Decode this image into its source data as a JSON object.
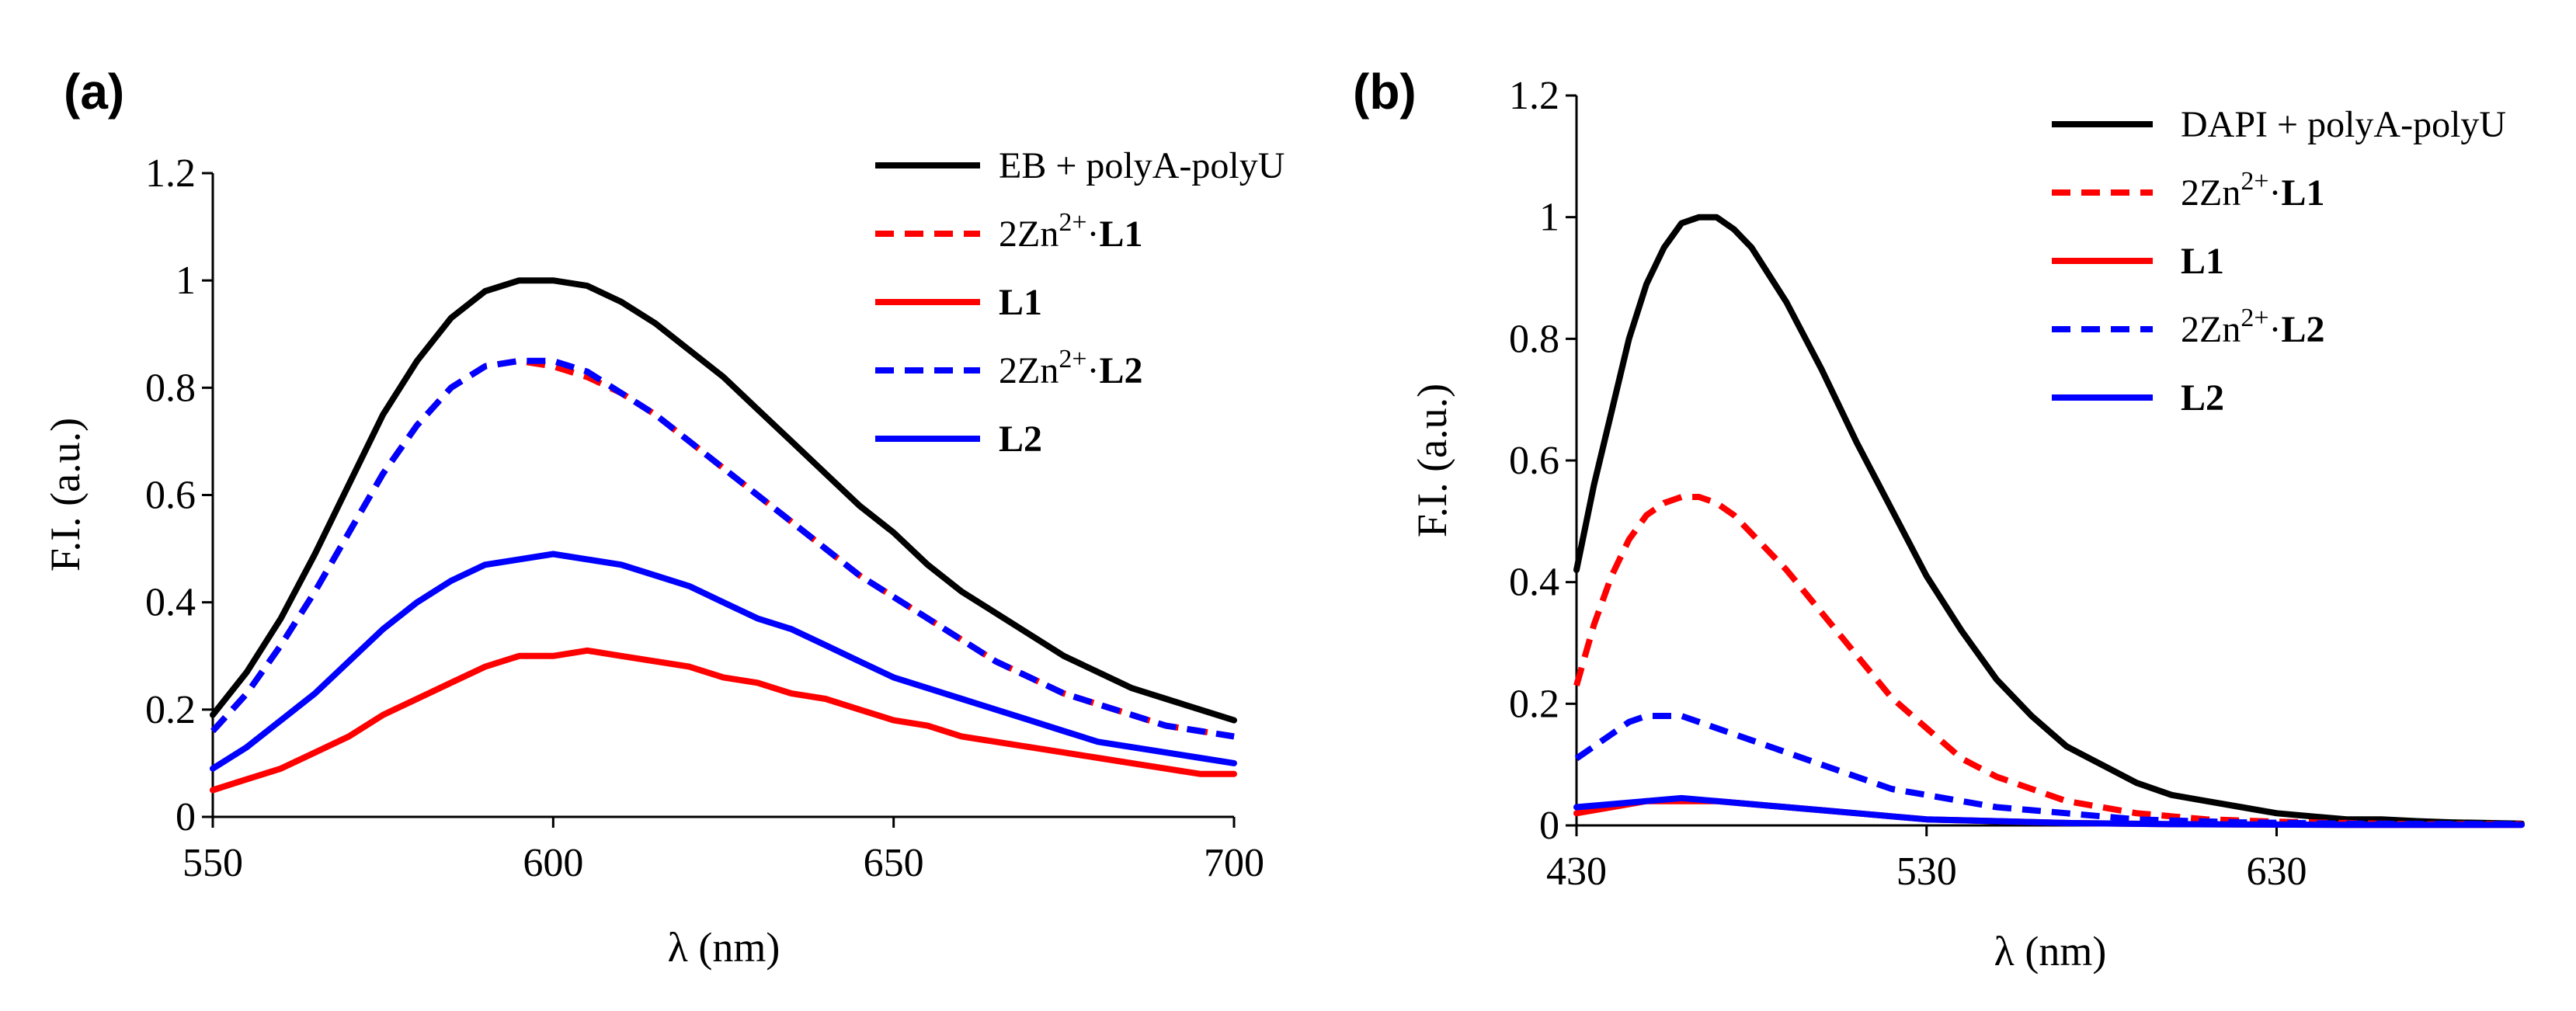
{
  "chart_data": [
    {
      "type": "line",
      "panel_label": "(a)",
      "xlabel": "λ (nm)",
      "ylabel": "F.I. (a.u.)",
      "xlim": [
        550,
        700
      ],
      "ylim": [
        0,
        1.2
      ],
      "x_ticks": [
        "550",
        "600",
        "650",
        "700"
      ],
      "y_ticks": [
        "0",
        "0.2",
        "0.4",
        "0.6",
        "0.8",
        "1",
        "1.2"
      ],
      "grid": false,
      "legend_position": "top-right",
      "series": [
        {
          "name": "EB + polyA-polyU",
          "color": "#000000",
          "dash": "solid",
          "legend": {
            "prefix": "EB + polyA-polyU",
            "sup": "",
            "suffix": "",
            "bold": ""
          },
          "x": [
            550,
            555,
            560,
            565,
            570,
            575,
            580,
            585,
            590,
            595,
            600,
            605,
            610,
            615,
            620,
            625,
            630,
            635,
            640,
            645,
            650,
            655,
            660,
            665,
            670,
            675,
            680,
            685,
            690,
            695,
            700
          ],
          "y": [
            0.19,
            0.27,
            0.37,
            0.49,
            0.62,
            0.75,
            0.85,
            0.93,
            0.98,
            1.0,
            1.0,
            0.99,
            0.96,
            0.92,
            0.87,
            0.82,
            0.76,
            0.7,
            0.64,
            0.58,
            0.53,
            0.47,
            0.42,
            0.38,
            0.34,
            0.3,
            0.27,
            0.24,
            0.22,
            0.2,
            0.18
          ]
        },
        {
          "name": "2Zn2+·L1",
          "color": "#ff0000",
          "dash": "dashed",
          "legend": {
            "prefix": "2Zn",
            "sup": "2+",
            "suffix": "·",
            "bold": "L1"
          },
          "x": [
            550,
            555,
            560,
            565,
            570,
            575,
            580,
            585,
            590,
            595,
            600,
            605,
            610,
            615,
            620,
            625,
            630,
            635,
            640,
            645,
            650,
            655,
            660,
            665,
            670,
            675,
            680,
            685,
            690,
            695,
            700
          ],
          "y": [
            0.16,
            0.23,
            0.32,
            0.42,
            0.53,
            0.64,
            0.73,
            0.8,
            0.84,
            0.85,
            0.84,
            0.82,
            0.79,
            0.75,
            0.7,
            0.65,
            0.6,
            0.55,
            0.5,
            0.45,
            0.41,
            0.37,
            0.33,
            0.29,
            0.26,
            0.23,
            0.21,
            0.19,
            0.17,
            0.16,
            0.15
          ]
        },
        {
          "name": "L1",
          "color": "#ff0000",
          "dash": "solid",
          "legend": {
            "prefix": "",
            "sup": "",
            "suffix": "",
            "bold": "L1"
          },
          "x": [
            550,
            555,
            560,
            565,
            570,
            575,
            580,
            585,
            590,
            595,
            600,
            605,
            610,
            615,
            620,
            625,
            630,
            635,
            640,
            645,
            650,
            655,
            660,
            665,
            670,
            675,
            680,
            685,
            690,
            695,
            700
          ],
          "y": [
            0.05,
            0.07,
            0.09,
            0.12,
            0.15,
            0.19,
            0.22,
            0.25,
            0.28,
            0.3,
            0.3,
            0.31,
            0.3,
            0.29,
            0.28,
            0.26,
            0.25,
            0.23,
            0.22,
            0.2,
            0.18,
            0.17,
            0.15,
            0.14,
            0.13,
            0.12,
            0.11,
            0.1,
            0.09,
            0.08,
            0.08
          ]
        },
        {
          "name": "2Zn2+·L2",
          "color": "#0000ff",
          "dash": "dashed",
          "legend": {
            "prefix": "2Zn",
            "sup": "2+",
            "suffix": "·",
            "bold": "L2"
          },
          "x": [
            550,
            555,
            560,
            565,
            570,
            575,
            580,
            585,
            590,
            595,
            600,
            605,
            610,
            615,
            620,
            625,
            630,
            635,
            640,
            645,
            650,
            655,
            660,
            665,
            670,
            675,
            680,
            685,
            690,
            695,
            700
          ],
          "y": [
            0.16,
            0.23,
            0.32,
            0.42,
            0.53,
            0.64,
            0.73,
            0.8,
            0.84,
            0.85,
            0.85,
            0.83,
            0.79,
            0.75,
            0.7,
            0.65,
            0.6,
            0.55,
            0.5,
            0.45,
            0.41,
            0.37,
            0.33,
            0.29,
            0.26,
            0.23,
            0.21,
            0.19,
            0.17,
            0.16,
            0.15
          ]
        },
        {
          "name": "L2",
          "color": "#0000ff",
          "dash": "solid",
          "legend": {
            "prefix": "",
            "sup": "",
            "suffix": "",
            "bold": "L2"
          },
          "x": [
            550,
            555,
            560,
            565,
            570,
            575,
            580,
            585,
            590,
            595,
            600,
            605,
            610,
            615,
            620,
            625,
            630,
            635,
            640,
            645,
            650,
            655,
            660,
            665,
            670,
            675,
            680,
            685,
            690,
            695,
            700
          ],
          "y": [
            0.09,
            0.13,
            0.18,
            0.23,
            0.29,
            0.35,
            0.4,
            0.44,
            0.47,
            0.48,
            0.49,
            0.48,
            0.47,
            0.45,
            0.43,
            0.4,
            0.37,
            0.35,
            0.32,
            0.29,
            0.26,
            0.24,
            0.22,
            0.2,
            0.18,
            0.16,
            0.14,
            0.13,
            0.12,
            0.11,
            0.1
          ]
        }
      ]
    },
    {
      "type": "line",
      "panel_label": "(b)",
      "xlabel": "λ (nm)",
      "ylabel": "F.I. (a.u.)",
      "xlim": [
        430,
        700
      ],
      "ylim": [
        0,
        1.2
      ],
      "x_ticks": [
        "430",
        "530",
        "630"
      ],
      "x_tick_values": [
        430,
        530,
        630
      ],
      "y_ticks": [
        "0",
        "0.2",
        "0.4",
        "0.6",
        "0.8",
        "1",
        "1.2"
      ],
      "grid": false,
      "legend_position": "top-right",
      "series": [
        {
          "name": "DAPI + polyA-polyU",
          "color": "#000000",
          "dash": "solid",
          "legend": {
            "prefix": "DAPI + polyA-polyU",
            "sup": "",
            "suffix": "",
            "bold": ""
          },
          "x": [
            430,
            435,
            440,
            445,
            450,
            455,
            460,
            465,
            470,
            475,
            480,
            490,
            500,
            510,
            520,
            530,
            540,
            550,
            560,
            570,
            580,
            590,
            600,
            610,
            620,
            630,
            640,
            650,
            660,
            670,
            680,
            690,
            700
          ],
          "y": [
            0.42,
            0.56,
            0.68,
            0.8,
            0.89,
            0.95,
            0.99,
            1.0,
            1.0,
            0.98,
            0.95,
            0.86,
            0.75,
            0.63,
            0.52,
            0.41,
            0.32,
            0.24,
            0.18,
            0.13,
            0.1,
            0.07,
            0.05,
            0.04,
            0.03,
            0.02,
            0.015,
            0.01,
            0.01,
            0.007,
            0.005,
            0.004,
            0.003
          ]
        },
        {
          "name": "2Zn2+·L1",
          "color": "#ff0000",
          "dash": "dashed",
          "legend": {
            "prefix": "2Zn",
            "sup": "2+",
            "suffix": "·",
            "bold": "L1"
          },
          "x": [
            430,
            435,
            440,
            445,
            450,
            455,
            460,
            465,
            470,
            475,
            480,
            490,
            500,
            510,
            520,
            530,
            540,
            550,
            560,
            570,
            580,
            590,
            600,
            610,
            620,
            630,
            640,
            650,
            660,
            670,
            680,
            690,
            700
          ],
          "y": [
            0.23,
            0.33,
            0.41,
            0.47,
            0.51,
            0.53,
            0.54,
            0.54,
            0.53,
            0.51,
            0.48,
            0.42,
            0.35,
            0.28,
            0.21,
            0.16,
            0.11,
            0.08,
            0.06,
            0.04,
            0.03,
            0.02,
            0.015,
            0.01,
            0.008,
            0.006,
            0.005,
            0.004,
            0.003,
            0.002,
            0.002,
            0.002,
            0.002
          ]
        },
        {
          "name": "L1",
          "color": "#ff0000",
          "dash": "solid",
          "legend": {
            "prefix": "",
            "sup": "",
            "suffix": "",
            "bold": "L1"
          },
          "x": [
            430,
            440,
            450,
            460,
            470,
            480,
            490,
            500,
            510,
            520,
            530,
            550,
            570,
            600,
            650,
            700
          ],
          "y": [
            0.02,
            0.03,
            0.04,
            0.04,
            0.04,
            0.035,
            0.03,
            0.025,
            0.02,
            0.015,
            0.01,
            0.007,
            0.004,
            0.002,
            0.001,
            0.001
          ]
        },
        {
          "name": "2Zn2+·L2",
          "color": "#0000ff",
          "dash": "dashed",
          "legend": {
            "prefix": "2Zn",
            "sup": "2+",
            "suffix": "·",
            "bold": "L2"
          },
          "x": [
            430,
            435,
            440,
            445,
            450,
            455,
            460,
            465,
            470,
            475,
            480,
            490,
            500,
            510,
            520,
            530,
            540,
            550,
            560,
            570,
            580,
            590,
            600,
            620,
            650,
            700
          ],
          "y": [
            0.11,
            0.13,
            0.15,
            0.17,
            0.18,
            0.18,
            0.18,
            0.17,
            0.16,
            0.15,
            0.14,
            0.12,
            0.1,
            0.08,
            0.06,
            0.05,
            0.04,
            0.03,
            0.025,
            0.02,
            0.015,
            0.01,
            0.008,
            0.005,
            0.003,
            0.002
          ]
        },
        {
          "name": "L2",
          "color": "#0000ff",
          "dash": "solid",
          "legend": {
            "prefix": "",
            "sup": "",
            "suffix": "",
            "bold": "L2"
          },
          "x": [
            430,
            440,
            450,
            460,
            470,
            480,
            490,
            500,
            510,
            520,
            530,
            550,
            570,
            600,
            650,
            700
          ],
          "y": [
            0.03,
            0.035,
            0.04,
            0.045,
            0.04,
            0.035,
            0.03,
            0.025,
            0.02,
            0.015,
            0.01,
            0.007,
            0.004,
            0.002,
            0.001,
            0.001
          ]
        }
      ]
    }
  ]
}
